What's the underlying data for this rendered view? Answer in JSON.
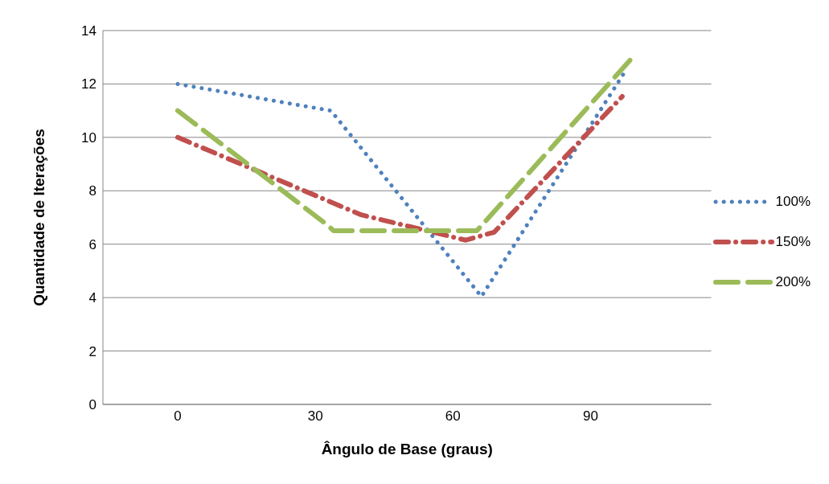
{
  "chart_data": {
    "type": "line",
    "xlabel": "Ângulo de Base (graus)",
    "ylabel": "Quantidade de Iterações",
    "xlim": [
      -16.3,
      116.3
    ],
    "xticks": [
      0,
      30,
      60,
      90
    ],
    "ylim": [
      0,
      14
    ],
    "yticks": [
      0,
      2,
      4,
      6,
      8,
      10,
      12,
      14
    ],
    "grid": "y",
    "legend": "right",
    "marker": "none",
    "series": [
      {
        "name": "100%",
        "color": "#4f81bd",
        "line_style": "dotted",
        "x": [
          0,
          33.4,
          66.2,
          97.9
        ],
        "values": [
          12,
          11,
          4.04,
          12.57
        ]
      },
      {
        "name": "150%",
        "color": "#c0504d",
        "line_style": "dashed",
        "x": [
          0,
          40,
          62.8,
          69,
          96.9
        ],
        "values": [
          10,
          7.1,
          6.15,
          6.45,
          11.53
        ]
      },
      {
        "name": "200%",
        "color": "#9bbb59",
        "line_style": "dashed",
        "x": [
          0,
          32.4,
          34,
          65.2,
          99.4
        ],
        "values": [
          11,
          6.75,
          6.5,
          6.5,
          13.04
        ]
      }
    ]
  }
}
